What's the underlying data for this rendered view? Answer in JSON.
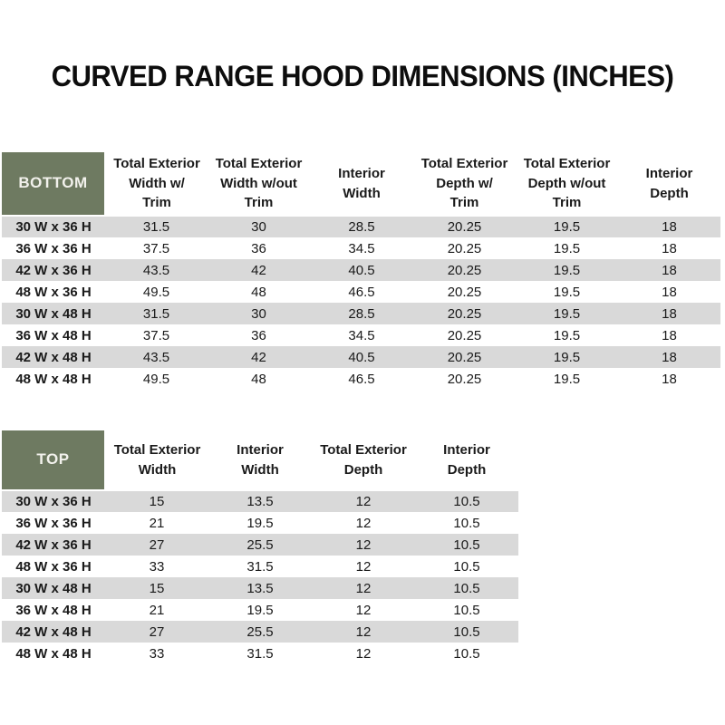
{
  "page": {
    "title": "CURVED RANGE HOOD DIMENSIONS (INCHES)"
  },
  "colors": {
    "header_green": "#6e7a61",
    "header_text": "#f2f1ec",
    "stripe_gray": "#d9d9d9",
    "row_white": "#ffffff",
    "body_text": "#1a1a1a"
  },
  "bottom_table": {
    "corner_label": "BOTTOM",
    "columns": [
      "Total Exterior\nWidth w/\nTrim",
      "Total Exterior\nWidth w/out\nTrim",
      "Interior\nWidth",
      "Total Exterior\nDepth w/\nTrim",
      "Total Exterior\nDepth w/out\nTrim",
      "Interior\nDepth"
    ],
    "rows": [
      {
        "label": "30 W x 36 H",
        "values": [
          "31.5",
          "30",
          "28.5",
          "20.25",
          "19.5",
          "18"
        ]
      },
      {
        "label": "36 W x 36 H",
        "values": [
          "37.5",
          "36",
          "34.5",
          "20.25",
          "19.5",
          "18"
        ]
      },
      {
        "label": "42 W x 36 H",
        "values": [
          "43.5",
          "42",
          "40.5",
          "20.25",
          "19.5",
          "18"
        ]
      },
      {
        "label": "48 W x 36 H",
        "values": [
          "49.5",
          "48",
          "46.5",
          "20.25",
          "19.5",
          "18"
        ]
      },
      {
        "label": "30 W x 48 H",
        "values": [
          "31.5",
          "30",
          "28.5",
          "20.25",
          "19.5",
          "18"
        ]
      },
      {
        "label": "36 W x 48 H",
        "values": [
          "37.5",
          "36",
          "34.5",
          "20.25",
          "19.5",
          "18"
        ]
      },
      {
        "label": "42 W x 48 H",
        "values": [
          "43.5",
          "42",
          "40.5",
          "20.25",
          "19.5",
          "18"
        ]
      },
      {
        "label": "48 W x 48 H",
        "values": [
          "49.5",
          "48",
          "46.5",
          "20.25",
          "19.5",
          "18"
        ]
      }
    ]
  },
  "top_table": {
    "corner_label": "TOP",
    "columns": [
      "Total Exterior\nWidth",
      "Interior\nWidth",
      "Total Exterior\nDepth",
      "Interior\nDepth"
    ],
    "rows": [
      {
        "label": "30 W x 36 H",
        "values": [
          "15",
          "13.5",
          "12",
          "10.5"
        ]
      },
      {
        "label": "36 W x 36 H",
        "values": [
          "21",
          "19.5",
          "12",
          "10.5"
        ]
      },
      {
        "label": "42 W x 36 H",
        "values": [
          "27",
          "25.5",
          "12",
          "10.5"
        ]
      },
      {
        "label": "48 W x 36 H",
        "values": [
          "33",
          "31.5",
          "12",
          "10.5"
        ]
      },
      {
        "label": "30 W x 48 H",
        "values": [
          "15",
          "13.5",
          "12",
          "10.5"
        ]
      },
      {
        "label": "36 W x 48 H",
        "values": [
          "21",
          "19.5",
          "12",
          "10.5"
        ]
      },
      {
        "label": "42 W x 48 H",
        "values": [
          "27",
          "25.5",
          "12",
          "10.5"
        ]
      },
      {
        "label": "48 W x 48 H",
        "values": [
          "33",
          "31.5",
          "12",
          "10.5"
        ]
      }
    ]
  }
}
